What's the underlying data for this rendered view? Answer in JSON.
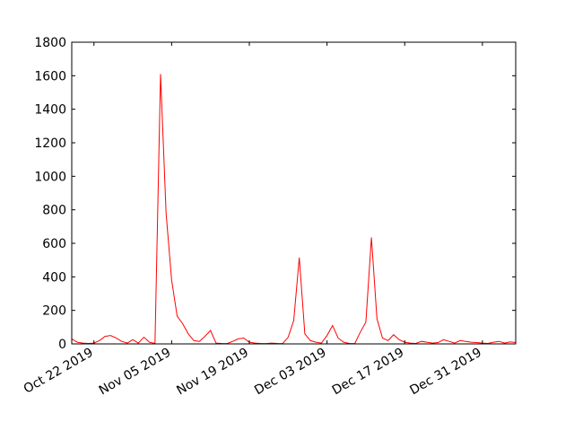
{
  "chart_data": {
    "type": "line",
    "title": "",
    "xlabel": "",
    "ylabel": "",
    "x_range": [
      "2019-10-18",
      "2020-01-06"
    ],
    "ylim": [
      0,
      1800
    ],
    "y_ticks": [
      0,
      200,
      400,
      600,
      800,
      1000,
      1200,
      1400,
      1600,
      1800
    ],
    "x_ticks": [
      {
        "date": "2019-10-22",
        "label": "Oct 22 2019"
      },
      {
        "date": "2019-11-05",
        "label": "Nov 05 2019"
      },
      {
        "date": "2019-11-19",
        "label": "Nov 19 2019"
      },
      {
        "date": "2019-12-03",
        "label": "Dec 03 2019"
      },
      {
        "date": "2019-12-17",
        "label": "Dec 17 2019"
      },
      {
        "date": "2019-12-31",
        "label": "Dec 31 2019"
      }
    ],
    "grid": false,
    "legend": "none",
    "series": [
      {
        "color": "#ff0000",
        "points": [
          [
            "2019-10-18",
            30
          ],
          [
            "2019-10-19",
            10
          ],
          [
            "2019-10-20",
            5
          ],
          [
            "2019-10-21",
            3
          ],
          [
            "2019-10-22",
            5
          ],
          [
            "2019-10-23",
            20
          ],
          [
            "2019-10-24",
            45
          ],
          [
            "2019-10-25",
            50
          ],
          [
            "2019-10-26",
            35
          ],
          [
            "2019-10-27",
            15
          ],
          [
            "2019-10-28",
            5
          ],
          [
            "2019-10-29",
            25
          ],
          [
            "2019-10-30",
            5
          ],
          [
            "2019-10-31",
            40
          ],
          [
            "2019-11-01",
            10
          ],
          [
            "2019-11-02",
            3
          ],
          [
            "2019-11-03",
            1610
          ],
          [
            "2019-11-04",
            780
          ],
          [
            "2019-11-05",
            380
          ],
          [
            "2019-11-06",
            165
          ],
          [
            "2019-11-07",
            120
          ],
          [
            "2019-11-08",
            60
          ],
          [
            "2019-11-09",
            20
          ],
          [
            "2019-11-10",
            15
          ],
          [
            "2019-11-11",
            45
          ],
          [
            "2019-11-12",
            80
          ],
          [
            "2019-11-13",
            5
          ],
          [
            "2019-11-14",
            3
          ],
          [
            "2019-11-15",
            2
          ],
          [
            "2019-11-16",
            15
          ],
          [
            "2019-11-17",
            30
          ],
          [
            "2019-11-18",
            35
          ],
          [
            "2019-11-19",
            10
          ],
          [
            "2019-11-20",
            5
          ],
          [
            "2019-11-21",
            3
          ],
          [
            "2019-11-22",
            2
          ],
          [
            "2019-11-23",
            5
          ],
          [
            "2019-11-24",
            3
          ],
          [
            "2019-11-25",
            2
          ],
          [
            "2019-11-26",
            40
          ],
          [
            "2019-11-27",
            140
          ],
          [
            "2019-11-28",
            515
          ],
          [
            "2019-11-29",
            60
          ],
          [
            "2019-11-30",
            20
          ],
          [
            "2019-12-01",
            10
          ],
          [
            "2019-12-02",
            5
          ],
          [
            "2019-12-03",
            50
          ],
          [
            "2019-12-04",
            110
          ],
          [
            "2019-12-05",
            35
          ],
          [
            "2019-12-06",
            10
          ],
          [
            "2019-12-07",
            3
          ],
          [
            "2019-12-08",
            2
          ],
          [
            "2019-12-09",
            70
          ],
          [
            "2019-12-10",
            130
          ],
          [
            "2019-12-11",
            635
          ],
          [
            "2019-12-12",
            150
          ],
          [
            "2019-12-13",
            35
          ],
          [
            "2019-12-14",
            20
          ],
          [
            "2019-12-15",
            55
          ],
          [
            "2019-12-16",
            25
          ],
          [
            "2019-12-17",
            10
          ],
          [
            "2019-12-18",
            5
          ],
          [
            "2019-12-19",
            3
          ],
          [
            "2019-12-20",
            15
          ],
          [
            "2019-12-21",
            10
          ],
          [
            "2019-12-22",
            5
          ],
          [
            "2019-12-23",
            8
          ],
          [
            "2019-12-24",
            25
          ],
          [
            "2019-12-25",
            15
          ],
          [
            "2019-12-26",
            5
          ],
          [
            "2019-12-27",
            20
          ],
          [
            "2019-12-28",
            15
          ],
          [
            "2019-12-29",
            10
          ],
          [
            "2019-12-30",
            8
          ],
          [
            "2019-12-31",
            5
          ],
          [
            "2020-01-01",
            3
          ],
          [
            "2020-01-02",
            10
          ],
          [
            "2020-01-03",
            15
          ],
          [
            "2020-01-04",
            5
          ],
          [
            "2020-01-05",
            12
          ],
          [
            "2020-01-06",
            8
          ]
        ]
      }
    ]
  }
}
